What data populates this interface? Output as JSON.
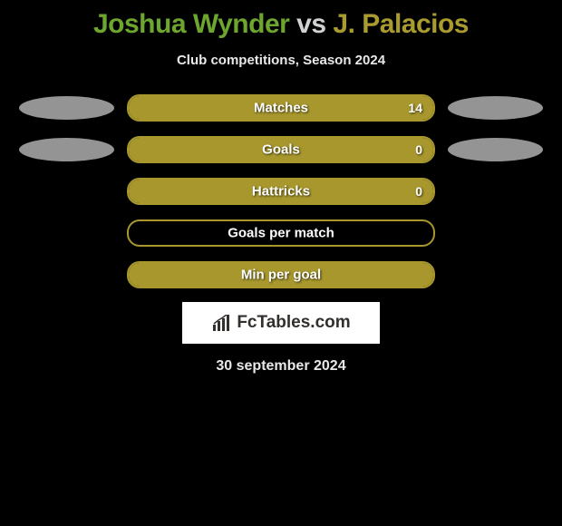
{
  "title": {
    "player1": "Joshua Wynder",
    "vs": "vs",
    "player2": "J. Palacios"
  },
  "subtitle": "Club competitions, Season 2024",
  "colors": {
    "accent1": "#6da62e",
    "accent2": "#aa9b2f",
    "ellipse_gray": "#949494",
    "bar_border": "#a7972d",
    "bar_fill": "#a7972d",
    "background": "#000000",
    "text_light": "#e8e8e8"
  },
  "rows": [
    {
      "label": "Matches",
      "value": "14",
      "fill_percent": 100,
      "left_ellipse": true,
      "left_ellipse_color": "#949494",
      "right_ellipse": true,
      "right_ellipse_color": "#949494"
    },
    {
      "label": "Goals",
      "value": "0",
      "fill_percent": 100,
      "left_ellipse": true,
      "left_ellipse_color": "#949494",
      "right_ellipse": true,
      "right_ellipse_color": "#949494"
    },
    {
      "label": "Hattricks",
      "value": "0",
      "fill_percent": 100,
      "left_ellipse": false,
      "right_ellipse": false
    },
    {
      "label": "Goals per match",
      "value": "",
      "fill_percent": 0,
      "left_ellipse": false,
      "right_ellipse": false
    },
    {
      "label": "Min per goal",
      "value": "",
      "fill_percent": 100,
      "left_ellipse": false,
      "right_ellipse": false
    }
  ],
  "logo": {
    "brand1": "Fc",
    "brand2": "Tables",
    "brand3": ".com"
  },
  "date": "30 september 2024"
}
